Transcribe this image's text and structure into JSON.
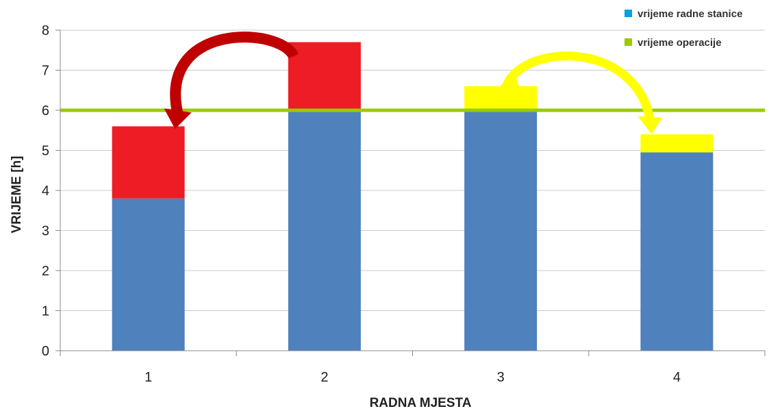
{
  "chart_data": {
    "type": "bar",
    "stacked": true,
    "categories": [
      "1",
      "2",
      "3",
      "4"
    ],
    "series": [
      {
        "name": "vrijeme radne stanice",
        "values": [
          3.8,
          6.0,
          6.0,
          4.95
        ],
        "color": "#4f81bd"
      },
      {
        "values": [
          1.8,
          1.7,
          0.0,
          0.0
        ],
        "color": "#ee1c24"
      },
      {
        "values": [
          0.0,
          0.0,
          0.6,
          0.45
        ],
        "color": "#ffff00"
      }
    ],
    "reference_line": {
      "name": "vrijeme operacije",
      "value": 6,
      "color": "#99cc00"
    },
    "xlabel": "RADNA MJESTA",
    "ylabel": "VRIJEME [h]",
    "ylim": [
      0,
      8
    ],
    "yticks": [
      "0",
      "1",
      "2",
      "3",
      "4",
      "5",
      "6",
      "7",
      "8"
    ],
    "grid": true,
    "legend_position": "top-right",
    "legend": [
      {
        "label": "vrijeme radne stanice",
        "color": "#00a2e8"
      },
      {
        "label": "vrijeme operacije",
        "color": "#99cc00"
      }
    ],
    "annotations": [
      {
        "type": "curved-arrow",
        "from_category": "2",
        "to_category": "1",
        "color": "#c00000"
      },
      {
        "type": "curved-arrow",
        "from_category": "3",
        "to_category": "4",
        "color": "#ffff00"
      }
    ]
  }
}
